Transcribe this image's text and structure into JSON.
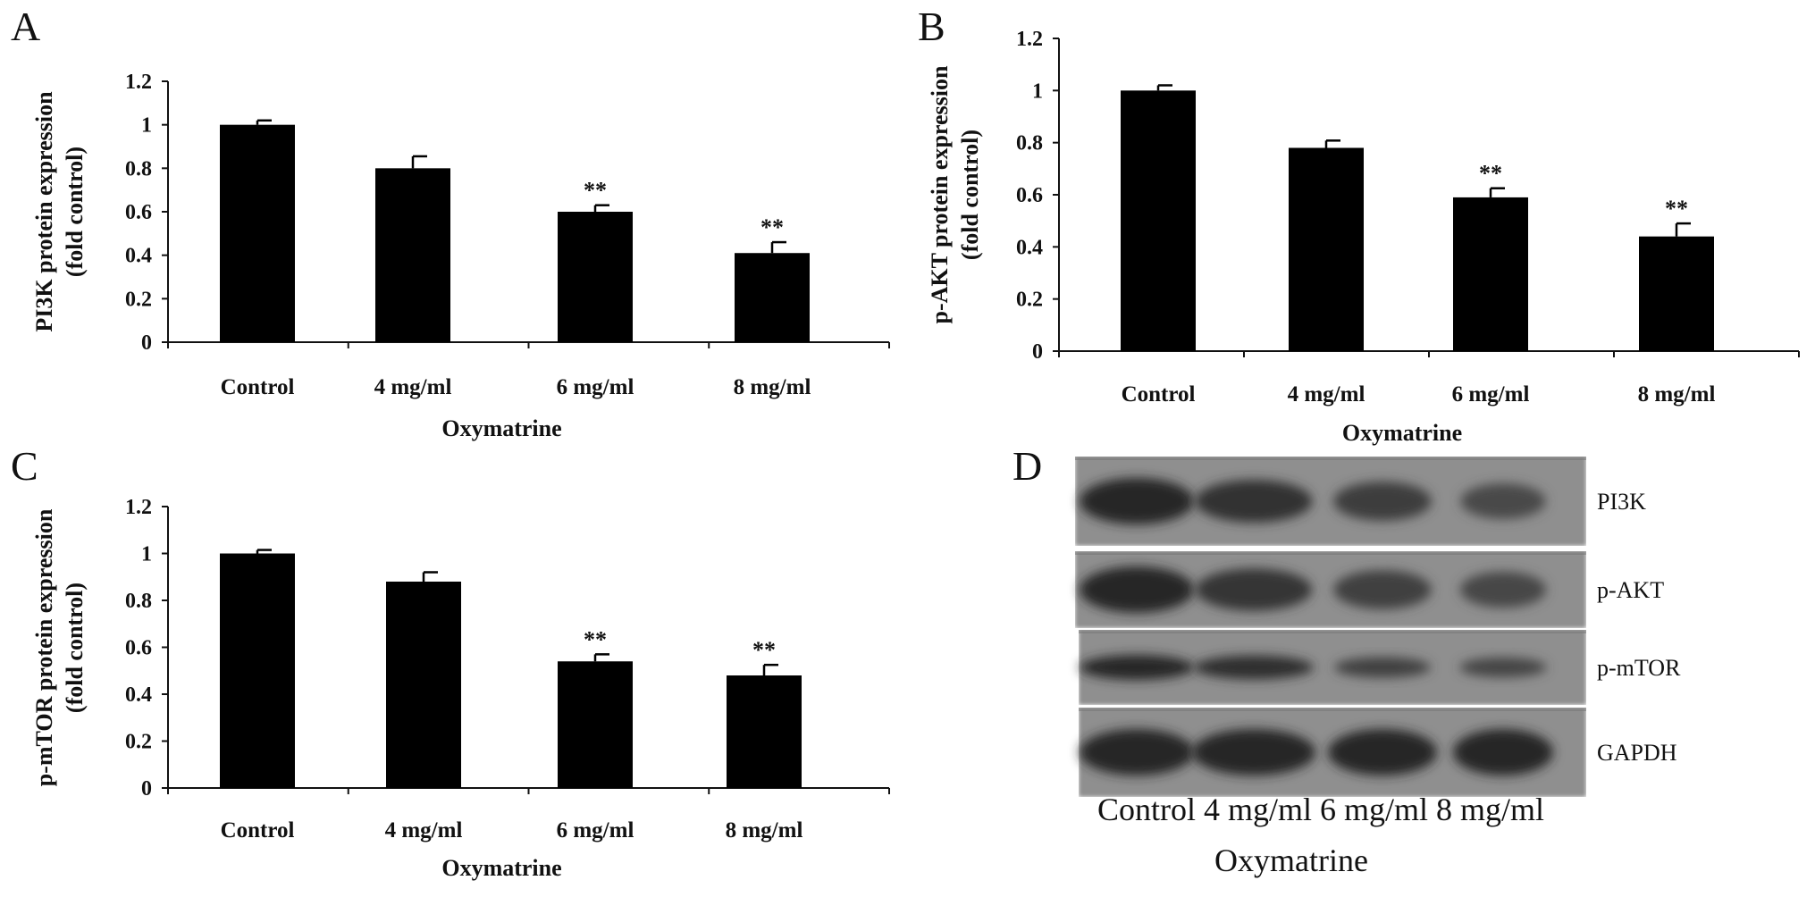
{
  "chart_data": [
    {
      "panel": "A",
      "type": "bar",
      "categories": [
        "Control",
        "4 mg/ml",
        "6 mg/ml",
        "8 mg/ml"
      ],
      "values": [
        1.0,
        0.8,
        0.6,
        0.41
      ],
      "errors": [
        0.02,
        0.055,
        0.03,
        0.05
      ],
      "significance": [
        "",
        "",
        "**",
        "**"
      ],
      "xlabel": "Oxymatrine",
      "ylabel": [
        "PI3K protein expression",
        "(fold control)"
      ],
      "ylim": [
        0,
        1.2
      ],
      "yticks": [
        "0",
        "0.2",
        "0.4",
        "0.6",
        "0.8",
        "1",
        "1.2"
      ]
    },
    {
      "panel": "B",
      "type": "bar",
      "categories": [
        "Control",
        "4 mg/ml",
        "6 mg/ml",
        "8 mg/ml"
      ],
      "values": [
        1.0,
        0.78,
        0.59,
        0.44
      ],
      "errors": [
        0.02,
        0.028,
        0.035,
        0.05
      ],
      "significance": [
        "",
        "",
        "**",
        "**"
      ],
      "xlabel": "Oxymatrine",
      "ylabel": [
        "p-AKT protein expression",
        "(fold control)"
      ],
      "ylim": [
        0,
        1.2
      ],
      "yticks": [
        "0",
        "0.2",
        "0.4",
        "0.6",
        "0.8",
        "1",
        "1.2"
      ]
    },
    {
      "panel": "C",
      "type": "bar",
      "categories": [
        "Control",
        "4 mg/ml",
        "6 mg/ml",
        "8 mg/ml"
      ],
      "values": [
        1.0,
        0.88,
        0.54,
        0.48
      ],
      "errors": [
        0.015,
        0.04,
        0.03,
        0.045
      ],
      "significance": [
        "",
        "",
        "**",
        "**"
      ],
      "xlabel": "Oxymatrine",
      "ylabel": [
        "p-mTOR protein expression",
        "(fold control)"
      ],
      "ylim": [
        0,
        1.2
      ],
      "yticks": [
        "0",
        "0.2",
        "0.4",
        "0.6",
        "0.8",
        "1",
        "1.2"
      ]
    }
  ],
  "blot": {
    "panel": "D",
    "proteins": [
      "PI3K",
      "p-AKT",
      "p-mTOR",
      "GAPDH"
    ],
    "lanes_label": "Control 4 mg/ml 6 mg/ml 8 mg/ml",
    "xlabel": "Oxymatrine",
    "band_intensity": [
      [
        1.0,
        0.8,
        0.6,
        0.41
      ],
      [
        1.0,
        0.78,
        0.59,
        0.44
      ],
      [
        1.0,
        0.88,
        0.54,
        0.48
      ],
      [
        1.0,
        1.0,
        1.0,
        1.0
      ]
    ]
  }
}
